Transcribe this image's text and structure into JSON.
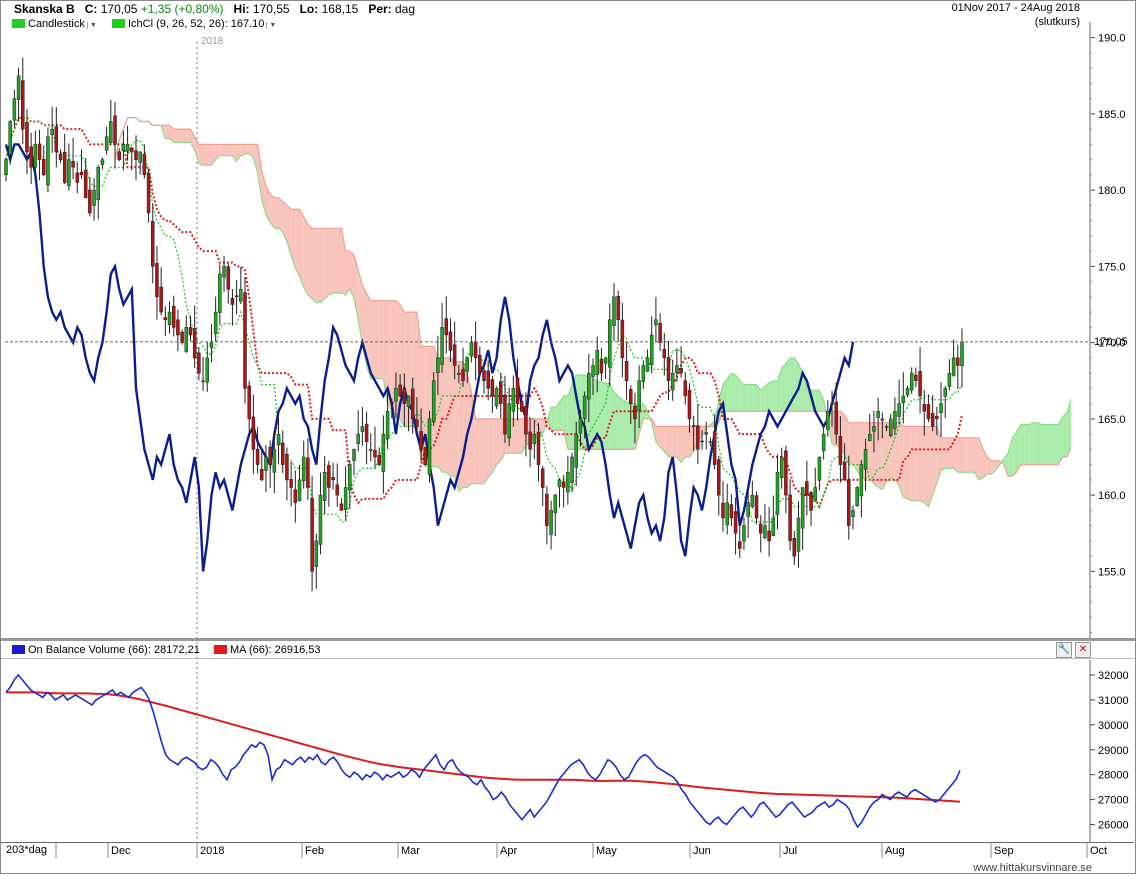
{
  "header": {
    "ticker": "Skanska B",
    "close_label": "C:",
    "close_value": "170,05",
    "change": "+1,35 (+0,80%)",
    "high_label": "Hi:",
    "high_value": "170,55",
    "low_label": "Lo:",
    "low_value": "168,15",
    "period_label": "Per:",
    "period_value": "dag",
    "date_range": "01Nov 2017 - 24Aug 2018",
    "price_type": "(slutkurs)"
  },
  "legend": {
    "candlestick": "Candlestick",
    "ichimoku": "IchCl (9, 26, 52, 26): 167.10",
    "obv": "On Balance Volume (66): 28172,21",
    "ma": "MA (66): 26916,53"
  },
  "year_marker": "2018",
  "last_price_label": "170,05",
  "period_tag": "203*dag",
  "watermark": "www.hittakursvinnare.se",
  "colors": {
    "bull": "#1fa51f",
    "bear": "#b01515",
    "cloud_green": "#a9eca9",
    "cloud_red": "#f7c3bb",
    "obv_line": "#0a1e8c",
    "ma_line": "#e01b1b",
    "kijun": "#e01b1b",
    "tenkan": "#22c222"
  },
  "chart_data": [
    {
      "type": "candlestick",
      "title": "Skanska B",
      "xlabel": "",
      "ylabel": "",
      "ylim": [
        150.5,
        190.5
      ],
      "y_ticks": [
        "190.0",
        "185.0",
        "180.0",
        "175.0",
        "170.0",
        "165.0",
        "160.0",
        "155.0"
      ],
      "x_ticks": [
        "Dec",
        "2018",
        "Feb",
        "Mar",
        "Apr",
        "May",
        "Jun",
        "Jul",
        "Aug",
        "Sep",
        "Oct"
      ],
      "last_close": 170.05,
      "grid": false,
      "legend_position": "top-left",
      "candles_close": [
        182.0,
        184.5,
        186.0,
        187.5,
        184.0,
        182.5,
        181.5,
        183.0,
        182.0,
        181.0,
        183.5,
        184.0,
        182.5,
        182.0,
        180.5,
        182.0,
        181.5,
        180.5,
        181.0,
        179.5,
        178.5,
        180.0,
        181.5,
        182.0,
        183.5,
        184.5,
        183.0,
        182.0,
        183.0,
        183.0,
        182.5,
        182.0,
        182.5,
        181.0,
        178.5,
        175.0,
        173.0,
        172.0,
        171.5,
        172.0,
        171.0,
        170.5,
        170.0,
        171.0,
        170.5,
        169.0,
        168.0,
        167.5,
        169.0,
        170.0,
        172.0,
        174.5,
        175.0,
        173.5,
        172.5,
        173.0,
        173.5,
        167.0,
        165.0,
        163.0,
        162.0,
        161.0,
        162.5,
        162.0,
        163.0,
        164.0,
        162.0,
        161.0,
        160.5,
        159.5,
        161.0,
        162.5,
        160.5,
        155.0,
        157.0,
        160.0,
        161.5,
        160.5,
        161.0,
        160.0,
        159.0,
        160.5,
        162.0,
        163.0,
        164.0,
        164.5,
        163.5,
        163.0,
        162.5,
        162.0,
        164.0,
        165.5,
        166.0,
        167.0,
        166.5,
        166.0,
        166.5,
        165.0,
        164.5,
        163.0,
        162.0,
        165.0,
        167.5,
        169.0,
        171.0,
        170.5,
        169.5,
        168.5,
        168.0,
        167.5,
        169.0,
        170.0,
        169.0,
        168.0,
        167.5,
        167.0,
        166.5,
        167.0,
        166.0,
        164.0,
        166.0,
        167.0,
        166.0,
        165.5,
        164.0,
        163.0,
        164.0,
        162.0,
        160.5,
        158.0,
        159.0,
        160.0,
        161.0,
        160.5,
        161.5,
        162.5,
        164.0,
        165.0,
        166.5,
        168.0,
        168.5,
        169.5,
        168.0,
        169.0,
        171.5,
        173.0,
        171.5,
        169.0,
        167.5,
        166.0,
        165.0,
        167.5,
        168.5,
        169.0,
        170.5,
        171.5,
        170.0,
        169.0,
        167.5,
        168.0,
        168.5,
        168.0,
        166.5,
        165.0,
        164.5,
        163.0,
        163.5,
        164.0,
        163.5,
        162.0,
        160.0,
        158.5,
        159.5,
        158.5,
        157.5,
        156.5,
        158.0,
        159.5,
        160.0,
        158.5,
        157.5,
        158.0,
        157.0,
        158.5,
        161.5,
        162.5,
        160.0,
        157.0,
        156.0,
        158.5,
        160.5,
        160.0,
        159.0,
        160.5,
        162.5,
        164.0,
        165.5,
        166.0,
        164.0,
        162.0,
        161.0,
        158.0,
        159.0,
        160.5,
        162.0,
        163.0,
        164.0,
        164.5,
        165.5,
        165.0,
        164.5,
        165.0,
        165.5,
        166.0,
        166.5,
        167.0,
        168.0,
        167.5,
        166.5,
        165.5,
        165.0,
        164.5,
        165.0,
        166.0,
        167.0,
        168.0,
        169.0,
        168.5,
        170.05
      ],
      "series": [
        {
          "name": "IchCl (9, 26, 52, 26): 167.10",
          "values": [
            167.1
          ]
        }
      ]
    },
    {
      "type": "line",
      "title": "",
      "xlabel": "",
      "ylabel": "",
      "ylim": [
        25300,
        32600
      ],
      "y_ticks": [
        "32000",
        "31000",
        "30000",
        "29000",
        "28000",
        "27000",
        "26000"
      ],
      "x_ticks": [
        "Dec",
        "2018",
        "Feb",
        "Mar",
        "Apr",
        "May",
        "Jun",
        "Jul",
        "Aug",
        "Sep",
        "Oct"
      ],
      "grid": false,
      "legend_position": "top-left",
      "series": [
        {
          "name": "On Balance Volume (66): 28172,21",
          "values": [
            31300,
            31500,
            31800,
            32000,
            31800,
            31600,
            31400,
            31300,
            31200,
            31100,
            31300,
            31200,
            31000,
            31100,
            31200,
            31000,
            31100,
            31200,
            31100,
            31000,
            30900,
            30800,
            31000,
            31100,
            31200,
            31300,
            31400,
            31200,
            31300,
            31200,
            31100,
            31300,
            31400,
            31500,
            31300,
            31000,
            30500,
            29900,
            29300,
            28800,
            28600,
            28500,
            28400,
            28600,
            28700,
            28600,
            28500,
            28300,
            28200,
            28300,
            28600,
            28500,
            28300,
            28000,
            27800,
            28200,
            28300,
            28500,
            28800,
            29000,
            29200,
            29100,
            29300,
            29200,
            28800,
            27800,
            28200,
            28300,
            28600,
            28500,
            28400,
            28600,
            28700,
            28500,
            28700,
            28600,
            28800,
            28500,
            28400,
            28600,
            28700,
            28500,
            28200,
            28000,
            27900,
            28100,
            28000,
            27800,
            28000,
            27900,
            28100,
            28000,
            27800,
            28000,
            27900,
            28000,
            28100,
            27900,
            28000,
            28200,
            28100,
            27900,
            28200,
            28400,
            28600,
            28800,
            28400,
            28200,
            28500,
            28600,
            28300,
            28100,
            28000,
            27900,
            27700,
            27600,
            27800,
            27500,
            27300,
            27000,
            27100,
            27300,
            27100,
            26800,
            26600,
            26400,
            26200,
            26400,
            26600,
            26300,
            26500,
            26700,
            26900,
            27200,
            27500,
            27800,
            28000,
            28200,
            28400,
            28500,
            28600,
            28400,
            28100,
            27900,
            27800,
            28000,
            28300,
            28600,
            28500,
            28300,
            28000,
            27800,
            27900,
            28200,
            28500,
            28700,
            28800,
            28700,
            28500,
            28300,
            28200,
            28100,
            28000,
            27900,
            27700,
            27400,
            27200,
            26900,
            26700,
            26500,
            26300,
            26100,
            26000,
            26200,
            26300,
            26100,
            26000,
            26200,
            26400,
            26600,
            26700,
            26500,
            26300,
            26500,
            26800,
            26900,
            26700,
            26500,
            26300,
            26400,
            26600,
            26800,
            26900,
            26700,
            26500,
            26300,
            26400,
            26500,
            26700,
            26800,
            26900,
            26700,
            26800,
            27000,
            26900,
            26800,
            26600,
            26200,
            25900,
            26100,
            26400,
            26700,
            26900,
            27000,
            27200,
            27100,
            27000,
            27200,
            27300,
            27200,
            27100,
            27300,
            27400,
            27300,
            27200,
            27100,
            27000,
            26900,
            27000,
            27200,
            27400,
            27600,
            27800,
            28172.21
          ]
        },
        {
          "name": "MA (66): 26916,53",
          "values": [
            31300,
            31300,
            31300,
            31300,
            31300,
            31280,
            31270,
            31260,
            31260,
            31260,
            31260,
            31250,
            31240,
            31220,
            31180,
            31130,
            31070,
            31000,
            30920,
            30840,
            30760,
            30670,
            30580,
            30490,
            30400,
            30310,
            30220,
            30130,
            30040,
            29950,
            29860,
            29770,
            29680,
            29590,
            29500,
            29410,
            29320,
            29230,
            29140,
            29050,
            28960,
            28870,
            28780,
            28700,
            28620,
            28540,
            28470,
            28410,
            28360,
            28310,
            28270,
            28230,
            28190,
            28150,
            28110,
            28070,
            28030,
            27990,
            27950,
            27910,
            27880,
            27850,
            27830,
            27810,
            27800,
            27800,
            27800,
            27800,
            27800,
            27800,
            27800,
            27790,
            27780,
            27760,
            27750,
            27750,
            27760,
            27760,
            27760,
            27740,
            27720,
            27690,
            27660,
            27630,
            27600,
            27560,
            27520,
            27480,
            27450,
            27420,
            27390,
            27360,
            27330,
            27300,
            27270,
            27250,
            27230,
            27220,
            27210,
            27200,
            27190,
            27180,
            27170,
            27160,
            27150,
            27140,
            27130,
            27120,
            27110,
            27100,
            27090,
            27080,
            27060,
            27040,
            27020,
            27000,
            26980,
            26960,
            26940,
            26916.53
          ]
        }
      ]
    }
  ]
}
